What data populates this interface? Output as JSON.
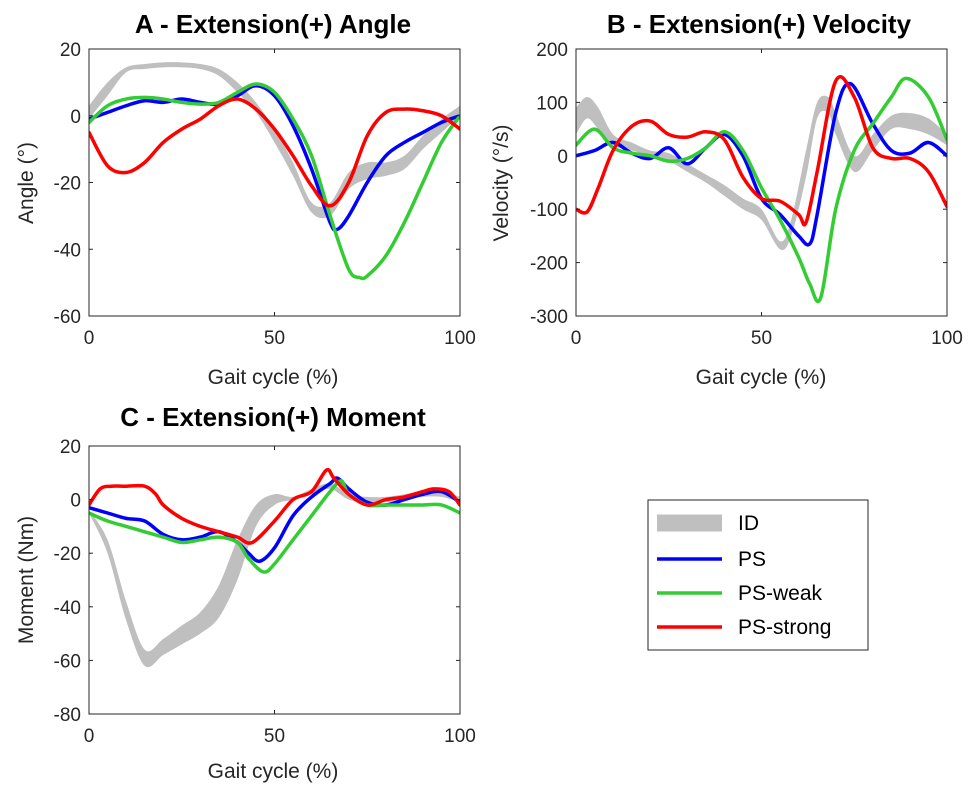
{
  "colors": {
    "ID": "#bfbfbf",
    "PS": "#0000ff",
    "PS-weak": "#33cc33",
    "PS-strong": "#ff0000"
  },
  "legend": {
    "placement": "right-middle",
    "entries": [
      "ID",
      "PS",
      "PS-weak",
      "PS-strong"
    ]
  },
  "chart_data": [
    {
      "type": "line",
      "title": "A - Extension(+) Angle",
      "xlabel": "Gait cycle (%)",
      "ylabel": "Angle (°)",
      "xlim": [
        0,
        100
      ],
      "ylim": [
        -60,
        20
      ],
      "xticks": [
        0,
        50,
        100
      ],
      "yticks": [
        20,
        0,
        -20,
        -40,
        -60
      ],
      "grid": false,
      "band": {
        "name": "ID",
        "x": [
          0,
          5,
          10,
          15,
          20,
          25,
          30,
          35,
          40,
          45,
          50,
          55,
          60,
          65,
          70,
          75,
          80,
          85,
          90,
          95,
          100
        ],
        "lower": [
          -1,
          6,
          13,
          14,
          14.5,
          14.5,
          14,
          12,
          7,
          1,
          -8,
          -18,
          -29,
          -30,
          -22,
          -19,
          -18,
          -16,
          -10,
          -5,
          0
        ],
        "upper": [
          3,
          10,
          14.5,
          15.5,
          16,
          16,
          15.5,
          14,
          10,
          4,
          -4,
          -14,
          -26,
          -26,
          -17,
          -14,
          -14,
          -12,
          -6,
          -1,
          3
        ]
      },
      "series": [
        {
          "name": "PS",
          "x": [
            0,
            5,
            10,
            15,
            20,
            25,
            30,
            35,
            40,
            45,
            50,
            55,
            60,
            65,
            67,
            70,
            75,
            80,
            85,
            90,
            95,
            100
          ],
          "values": [
            -1,
            1,
            3,
            4.5,
            4,
            5,
            4,
            3.5,
            6,
            9,
            6,
            -3,
            -16,
            -32,
            -34,
            -30,
            -20,
            -12,
            -8,
            -5,
            -2,
            0
          ]
        },
        {
          "name": "PS-weak",
          "x": [
            0,
            5,
            10,
            15,
            20,
            25,
            30,
            35,
            40,
            45,
            50,
            55,
            60,
            65,
            70,
            73,
            75,
            80,
            85,
            90,
            95,
            100
          ],
          "values": [
            -2,
            3,
            5,
            5.5,
            5,
            4,
            3.5,
            4,
            7,
            9.5,
            7,
            -1,
            -12,
            -30,
            -46,
            -48.5,
            -48,
            -42,
            -32,
            -20,
            -8,
            0
          ]
        },
        {
          "name": "PS-strong",
          "x": [
            0,
            5,
            10,
            15,
            20,
            25,
            30,
            35,
            40,
            45,
            50,
            55,
            60,
            65,
            70,
            75,
            80,
            85,
            90,
            95,
            100
          ],
          "values": [
            -5,
            -15,
            -17,
            -14,
            -8,
            -4,
            -1,
            3,
            5,
            2,
            -4,
            -12,
            -21,
            -27,
            -20,
            -6,
            1,
            2,
            1.5,
            0,
            -4
          ]
        }
      ]
    },
    {
      "type": "line",
      "title": "B - Extension(+) Velocity",
      "xlabel": "Gait cycle (%)",
      "ylabel": "Velocity (°/s)",
      "xlim": [
        0,
        100
      ],
      "ylim": [
        -300,
        200
      ],
      "xticks": [
        0,
        50,
        100
      ],
      "yticks": [
        200,
        100,
        0,
        -100,
        -200,
        -300
      ],
      "grid": false,
      "band": {
        "name": "ID",
        "x": [
          0,
          3,
          6,
          10,
          15,
          20,
          25,
          30,
          35,
          40,
          45,
          50,
          55,
          58,
          62,
          65,
          68,
          70,
          75,
          80,
          85,
          90,
          95,
          100
        ],
        "lower": [
          40,
          70,
          50,
          20,
          10,
          0,
          -10,
          -30,
          -50,
          -75,
          -100,
          -120,
          -175,
          -150,
          -40,
          70,
          80,
          40,
          -30,
          10,
          50,
          50,
          40,
          20
        ],
        "upper": [
          90,
          110,
          90,
          40,
          25,
          10,
          5,
          -15,
          -35,
          -55,
          -80,
          -100,
          -160,
          -120,
          10,
          100,
          110,
          80,
          0,
          40,
          75,
          80,
          70,
          40
        ]
      },
      "series": [
        {
          "name": "PS",
          "x": [
            0,
            5,
            10,
            15,
            20,
            25,
            30,
            35,
            40,
            45,
            50,
            55,
            60,
            63,
            65,
            70,
            74,
            80,
            85,
            90,
            95,
            100
          ],
          "values": [
            0,
            10,
            25,
            5,
            -5,
            15,
            -15,
            15,
            40,
            0,
            -80,
            -110,
            -150,
            -165,
            -110,
            80,
            135,
            60,
            10,
            5,
            25,
            0
          ]
        },
        {
          "name": "PS-weak",
          "x": [
            0,
            5,
            10,
            15,
            20,
            25,
            30,
            35,
            40,
            45,
            50,
            55,
            60,
            63,
            66,
            70,
            75,
            80,
            85,
            89,
            95,
            100
          ],
          "values": [
            20,
            50,
            15,
            5,
            0,
            -10,
            -5,
            15,
            45,
            10,
            -60,
            -120,
            -190,
            -240,
            -265,
            -100,
            10,
            60,
            110,
            145,
            110,
            30
          ]
        },
        {
          "name": "PS-strong",
          "x": [
            0,
            3,
            6,
            10,
            15,
            20,
            25,
            30,
            35,
            40,
            45,
            50,
            55,
            60,
            62,
            65,
            70,
            75,
            80,
            85,
            90,
            95,
            100
          ],
          "values": [
            -100,
            -105,
            -60,
            10,
            55,
            65,
            40,
            35,
            45,
            30,
            -40,
            -80,
            -85,
            -110,
            -125,
            -30,
            140,
            110,
            15,
            -5,
            -5,
            -30,
            -95
          ]
        }
      ]
    },
    {
      "type": "line",
      "title": "C - Extension(+) Moment",
      "xlabel": "Gait cycle (%)",
      "ylabel": "Moment (Nm)",
      "xlim": [
        0,
        100
      ],
      "ylim": [
        -80,
        20
      ],
      "xticks": [
        0,
        50,
        100
      ],
      "yticks": [
        20,
        0,
        -20,
        -40,
        -60,
        -80
      ],
      "grid": false,
      "band": {
        "name": "ID",
        "x": [
          0,
          5,
          10,
          15,
          20,
          25,
          30,
          35,
          40,
          45,
          50,
          55,
          60,
          65,
          70,
          75,
          80,
          85,
          90,
          95,
          100
        ],
        "lower": [
          -5,
          -20,
          -45,
          -62,
          -58,
          -54,
          -50,
          -44,
          -30,
          -10,
          -2,
          0,
          2,
          4,
          0,
          -1,
          -1,
          0,
          1,
          1,
          -1
        ],
        "upper": [
          -4,
          -15,
          -38,
          -56,
          -52,
          -47,
          -42,
          -32,
          -15,
          -2,
          2,
          1,
          4,
          6,
          2,
          1,
          1,
          2,
          3,
          3,
          1
        ]
      },
      "series": [
        {
          "name": "PS",
          "x": [
            0,
            5,
            10,
            15,
            20,
            25,
            30,
            35,
            40,
            43,
            46,
            50,
            55,
            60,
            65,
            67,
            70,
            75,
            80,
            85,
            90,
            95,
            100
          ],
          "values": [
            -3,
            -5,
            -7,
            -8,
            -13,
            -15,
            -14,
            -12,
            -16,
            -20,
            -23,
            -18,
            -6,
            1,
            6,
            8,
            4,
            -1,
            -2,
            0,
            2,
            3,
            -1
          ]
        },
        {
          "name": "PS-weak",
          "x": [
            0,
            5,
            10,
            15,
            20,
            25,
            30,
            35,
            40,
            43,
            47,
            50,
            55,
            60,
            65,
            68,
            70,
            75,
            80,
            85,
            90,
            95,
            100
          ],
          "values": [
            -5,
            -8,
            -10,
            -12,
            -14,
            -16,
            -15,
            -14,
            -16,
            -22,
            -27,
            -24,
            -15,
            -6,
            3,
            7,
            2,
            -2,
            -2,
            -2,
            -2,
            -2,
            -5
          ]
        },
        {
          "name": "PS-strong",
          "x": [
            0,
            3,
            6,
            10,
            15,
            18,
            20,
            25,
            30,
            35,
            40,
            44,
            50,
            55,
            60,
            64,
            66,
            70,
            75,
            80,
            85,
            90,
            93,
            97,
            100
          ],
          "values": [
            -2,
            4,
            5,
            5,
            5,
            2,
            -2,
            -7,
            -10,
            -12,
            -14,
            -16,
            -8,
            0,
            3,
            11,
            8,
            2,
            -2,
            0,
            1,
            3,
            4,
            3,
            -2
          ]
        }
      ]
    }
  ]
}
